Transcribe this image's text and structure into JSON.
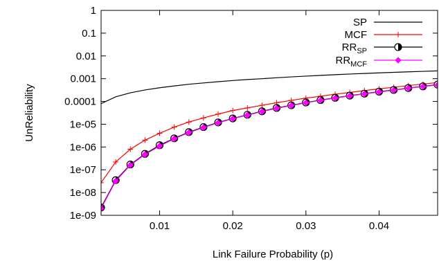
{
  "chart_data": {
    "type": "line",
    "xlabel": "Link Failure Probability (p)",
    "ylabel": "UnReliability",
    "xlim": [
      0.002,
      0.048
    ],
    "ylim": [
      1e-09,
      1
    ],
    "yscale": "log",
    "xticks": [
      {
        "value": 0.01,
        "label": "0.01"
      },
      {
        "value": 0.02,
        "label": "0.02"
      },
      {
        "value": 0.03,
        "label": "0.03"
      },
      {
        "value": 0.04,
        "label": "0.04"
      }
    ],
    "yticks": [
      {
        "value": 1,
        "label": "1"
      },
      {
        "value": 0.1,
        "label": "0.1"
      },
      {
        "value": 0.01,
        "label": "0.01"
      },
      {
        "value": 0.001,
        "label": "0.001"
      },
      {
        "value": 0.0001,
        "label": "0.0001"
      },
      {
        "value": 1e-05,
        "label": "1e-05"
      },
      {
        "value": 1e-06,
        "label": "1e-06"
      },
      {
        "value": 1e-07,
        "label": "1e-07"
      },
      {
        "value": 1e-08,
        "label": "1e-08"
      },
      {
        "value": 1e-09,
        "label": "1e-09"
      }
    ],
    "legend_position": "top-right",
    "x": [
      0.002,
      0.004,
      0.006,
      0.008,
      0.01,
      0.012,
      0.014,
      0.016,
      0.018,
      0.02,
      0.022,
      0.024,
      0.026,
      0.028,
      0.03,
      0.032,
      0.034,
      0.036,
      0.038,
      0.04,
      0.042,
      0.044,
      0.046,
      0.048
    ],
    "series": [
      {
        "name": "SP",
        "sub": "",
        "color": "#000000",
        "marker": "none",
        "values": [
          8e-05,
          0.00016,
          0.00024,
          0.00032,
          0.0004,
          0.00048,
          0.00057,
          0.00065,
          0.00074,
          0.00083,
          0.00092,
          0.001,
          0.0011,
          0.0012,
          0.0013,
          0.0014,
          0.0015,
          0.0016,
          0.0017,
          0.0018,
          0.0019,
          0.002,
          0.0021,
          0.0022
        ]
      },
      {
        "name": "MCF",
        "sub": "",
        "color": "#ff0000",
        "marker": "plus",
        "values": [
          2.7e-08,
          2.2e-07,
          8e-07,
          2e-06,
          4e-06,
          7.5e-06,
          1.25e-05,
          1.9e-05,
          2.8e-05,
          4e-05,
          5.2e-05,
          6.8e-05,
          8.8e-05,
          0.000112,
          0.00014,
          0.00017,
          0.000208,
          0.00025,
          0.0003,
          0.00036,
          0.00042,
          0.0005,
          0.00058,
          0.00068
        ]
      },
      {
        "name": "RR",
        "sub": "SP",
        "color": "#000000",
        "marker": "half-circle",
        "values": [
          2.2e-09,
          3.5e-08,
          1.7e-07,
          5e-07,
          1.2e-06,
          2.4e-06,
          4.5e-06,
          7.5e-06,
          1.2e-05,
          1.8e-05,
          2.6e-05,
          3.7e-05,
          5.2e-05,
          6.8e-05,
          9e-05,
          0.000115,
          0.000145,
          0.00018,
          0.00022,
          0.00027,
          0.00032,
          0.00039,
          0.00046,
          0.00055
        ]
      },
      {
        "name": "RR",
        "sub": "MCF",
        "color": "#ff00ff",
        "marker": "diamond",
        "values": [
          2e-09,
          3.2e-08,
          1.6e-07,
          4.7e-07,
          1.1e-06,
          2.3e-06,
          4.3e-06,
          7.2e-06,
          1.15e-05,
          1.75e-05,
          2.5e-05,
          3.6e-05,
          5e-05,
          6.6e-05,
          8.7e-05,
          0.000112,
          0.00014,
          0.000175,
          0.000215,
          0.00026,
          0.00031,
          0.00038,
          0.00045,
          0.00053
        ]
      }
    ]
  }
}
